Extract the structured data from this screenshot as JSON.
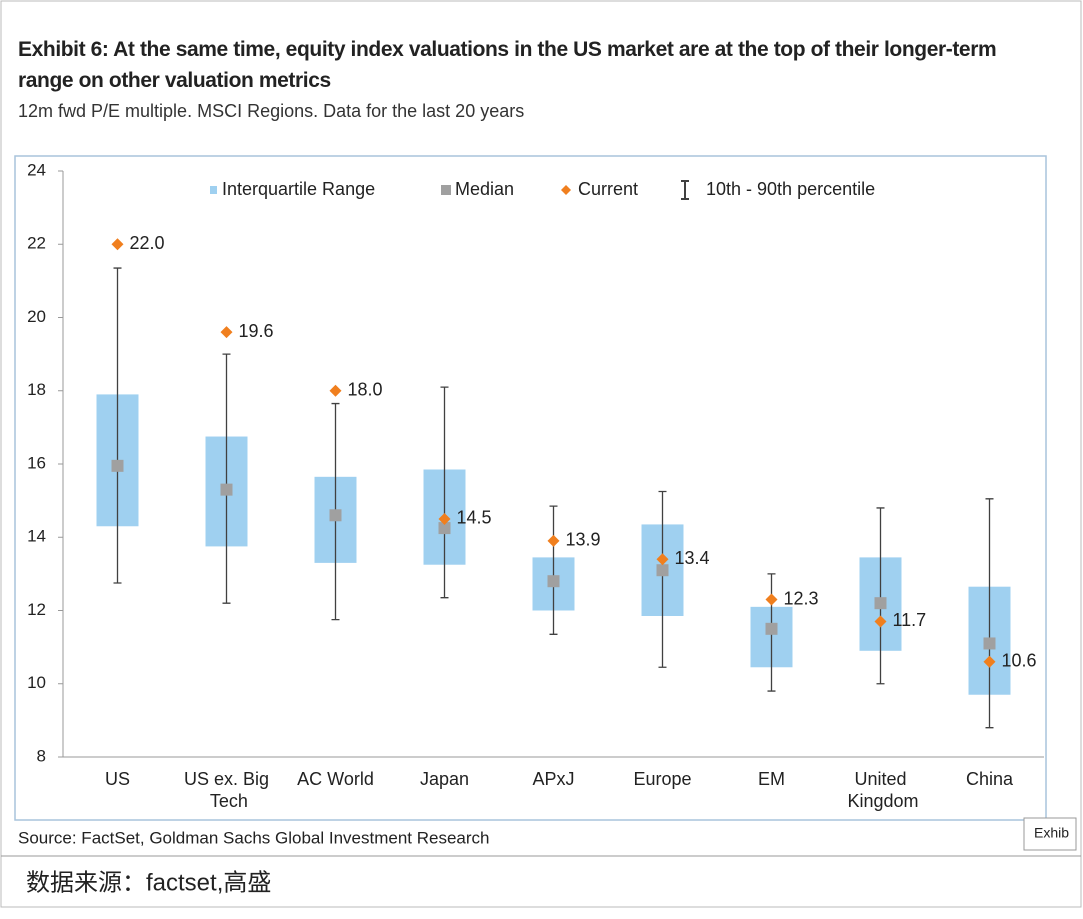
{
  "chart_data": {
    "type": "box",
    "title": "Exhibit 6: At the same time, equity index valuations in the US market are at the top of their longer-term range on other valuation metrics",
    "subtitle": "12m fwd P/E multiple. MSCI Regions. Data for the last 20 years",
    "source": "Source: FactSet, Goldman Sachs Global Investment Research",
    "categories": [
      "US",
      "US ex. Big Tech",
      "AC World",
      "Japan",
      "APxJ",
      "Europe",
      "EM",
      "United Kingdom",
      "China"
    ],
    "series": [
      {
        "name": "Interquartile Range",
        "color": "#9fd0f0",
        "low": [
          14.3,
          13.75,
          13.3,
          13.25,
          12.0,
          11.85,
          10.45,
          10.9,
          9.7
        ],
        "high": [
          17.9,
          16.75,
          15.65,
          15.85,
          13.45,
          14.35,
          12.1,
          13.45,
          12.65
        ]
      },
      {
        "name": "Median",
        "color": "#a0a0a0",
        "values": [
          15.95,
          15.3,
          14.6,
          14.25,
          12.8,
          13.1,
          11.5,
          12.2,
          11.1
        ]
      },
      {
        "name": "Current",
        "color": "#f07f1e",
        "values": [
          22.0,
          19.6,
          18.0,
          14.5,
          13.9,
          13.4,
          12.3,
          11.7,
          10.6
        ],
        "value_labels": [
          "22.0",
          "19.6",
          "18.0",
          "14.5",
          "13.9",
          "13.4",
          "12.3",
          "11.7",
          "10.6"
        ]
      },
      {
        "name": "10th - 90th percentile",
        "color": "#404040",
        "low": [
          12.75,
          12.2,
          11.75,
          12.35,
          11.35,
          10.45,
          9.8,
          10.0,
          8.8
        ],
        "high": [
          21.35,
          19.0,
          17.65,
          18.1,
          14.85,
          15.25,
          13.0,
          14.8,
          15.05
        ]
      }
    ],
    "ylim": [
      8,
      24
    ],
    "yticks": [
      8,
      10,
      12,
      14,
      16,
      18,
      20,
      22,
      24
    ],
    "grid": false
  },
  "tooltip": "Exhib",
  "footer": "数据来源：factset,高盛"
}
